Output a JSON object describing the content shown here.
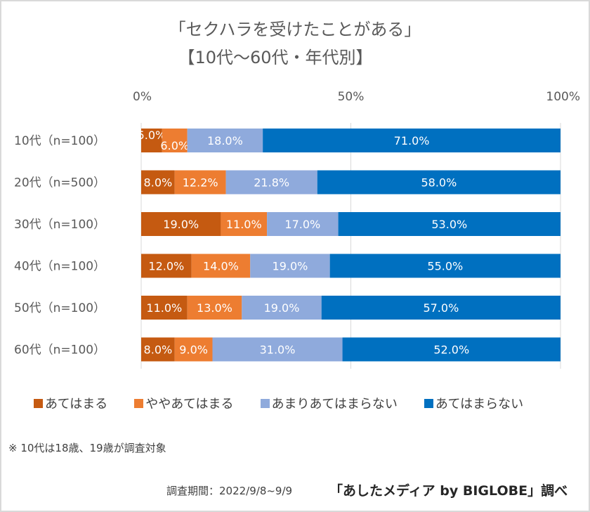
{
  "chart_data": {
    "type": "bar",
    "orientation": "horizontal",
    "stacked": "percent",
    "title": "「セクハラを受けたことがある」",
    "subtitle": "【10代～60代・年代別】",
    "xlabel": "",
    "ylabel": "",
    "xlim": [
      0,
      100
    ],
    "x_ticks": [
      "0%",
      "50%",
      "100%"
    ],
    "x_tick_values": [
      0,
      50,
      100
    ],
    "x_axis_position": "top",
    "grid": true,
    "legend_position": "bottom",
    "categories": [
      "10代（n=100）",
      "20代（n=500）",
      "30代（n=100）",
      "40代（n=100）",
      "50代（n=100）",
      "60代（n=100）"
    ],
    "series": [
      {
        "name": "あてはまる",
        "color": "#c55a11",
        "values": [
          5.0,
          8.0,
          19.0,
          12.0,
          11.0,
          8.0
        ],
        "labels": [
          "5.0%",
          "8.0%",
          "19.0%",
          "12.0%",
          "11.0%",
          "8.0%"
        ]
      },
      {
        "name": "ややあてはまる",
        "color": "#ed7d31",
        "values": [
          6.0,
          12.2,
          11.0,
          14.0,
          13.0,
          9.0
        ],
        "labels": [
          "6.0%",
          "12.2%",
          "11.0%",
          "14.0%",
          "13.0%",
          "9.0%"
        ]
      },
      {
        "name": "あまりあてはまらない",
        "color": "#8faadc",
        "values": [
          18.0,
          21.8,
          17.0,
          19.0,
          19.0,
          31.0
        ],
        "labels": [
          "18.0%",
          "21.8%",
          "17.0%",
          "19.0%",
          "19.0%",
          "31.0%"
        ]
      },
      {
        "name": "あてはまらない",
        "color": "#0070c0",
        "values": [
          71.0,
          58.0,
          53.0,
          55.0,
          57.0,
          52.0
        ],
        "labels": [
          "71.0%",
          "58.0%",
          "53.0%",
          "55.0%",
          "57.0%",
          "52.0%"
        ]
      }
    ]
  },
  "footer": {
    "note": "※ 10代は18歳、19歳が調査対象",
    "period": "調査期間：2022/9/8~9/9",
    "source": "「あしたメディア by BIGLOBE」調べ"
  }
}
